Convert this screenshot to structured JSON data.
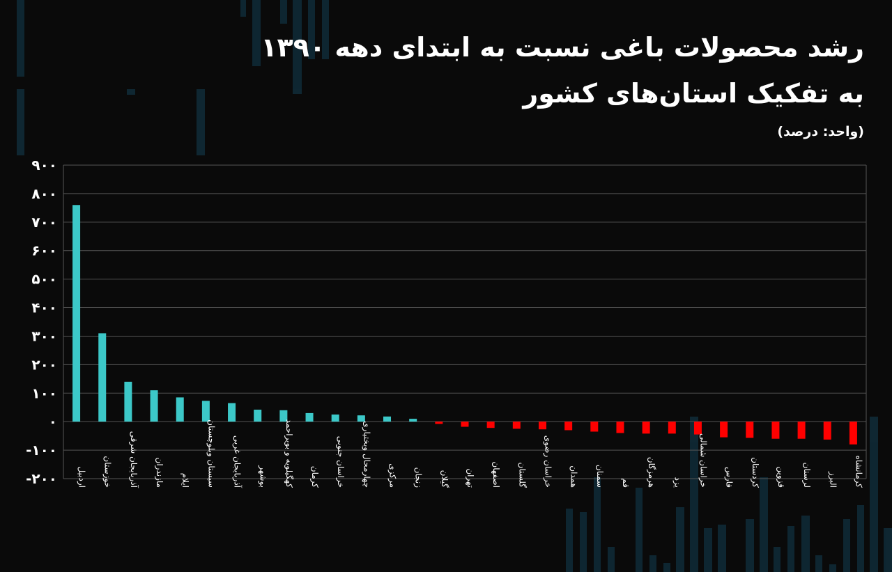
{
  "title_line_1": "رشد محصولات باغی نسبت به ابتدای دهه ۱۳۹۰",
  "title_line_2": "به تفکیک استان‌های کشور",
  "unit_label": "(واحد: درصد)",
  "colors": {
    "background": "#0a0a0a",
    "positive": "#3cc8c8",
    "negative": "#ff0000",
    "grid": "#555555",
    "text": "#ffffff"
  },
  "chart_data": {
    "type": "bar",
    "title": "رشد محصولات باغی نسبت به ابتدای دهه ۱۳۹۰ به تفکیک استان‌های کشور",
    "ylabel": "(واحد: درصد)",
    "ylim": [
      -200,
      900
    ],
    "yticks": [
      900,
      800,
      700,
      600,
      500,
      400,
      300,
      200,
      100,
      0,
      -100,
      -200
    ],
    "ytick_labels": [
      "۹۰۰",
      "۸۰۰",
      "۷۰۰",
      "۶۰۰",
      "۵۰۰",
      "۴۰۰",
      "۳۰۰",
      "۲۰۰",
      "۱۰۰",
      "۰",
      "-۱۰۰",
      "-۲۰۰"
    ],
    "grid": true,
    "categories": [
      "اردبیل",
      "خوزستان",
      "آذربایجان شرقی",
      "مازندران",
      "ایلام",
      "سیستان وبلوچستان",
      "آذربایجان غربی",
      "بوشهر",
      "کهگیلویه و بویراحمد",
      "کرمان",
      "خراسان جنوبی",
      "چهارمحال وبختیاری",
      "مرکزی",
      "زنجان",
      "گیلان",
      "تهران",
      "اصفهان",
      "گلستان",
      "خراسان رضوی",
      "همدان",
      "سمنان",
      "قم",
      "هرمزگان",
      "یزد",
      "خراسان شمالی",
      "فارس",
      "کردستان",
      "قزوین",
      "لرستان",
      "البرز",
      "کرمانشاه"
    ],
    "values": [
      760,
      310,
      140,
      110,
      85,
      73,
      65,
      42,
      40,
      30,
      25,
      22,
      18,
      10,
      -8,
      -18,
      -22,
      -25,
      -27,
      -30,
      -35,
      -40,
      -42,
      -42,
      -45,
      -55,
      -57,
      -60,
      -60,
      -63,
      -80
    ]
  }
}
